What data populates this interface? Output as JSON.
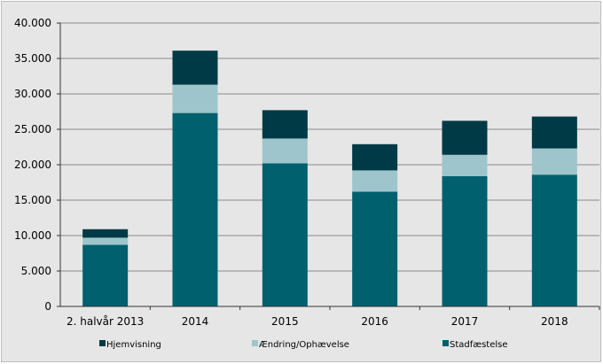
{
  "colors": {
    "background": "#e6e6e6",
    "gridline": "#8a8a8a",
    "stadfaestelse": "#00606e",
    "aendring": "#9ec5cc",
    "hjemvisning": "#003a46"
  },
  "chart_data": {
    "type": "bar",
    "stacked": true,
    "categories": [
      "2. halvår 2013",
      "2014",
      "2015",
      "2016",
      "2017",
      "2018"
    ],
    "series": [
      {
        "name": "Stadfæstelse",
        "values": [
          8700,
          27300,
          20200,
          16200,
          18400,
          18600
        ],
        "color": "#00606e"
      },
      {
        "name": "Ændring/Ophævelse",
        "values": [
          1000,
          4000,
          3500,
          3000,
          3000,
          3700
        ],
        "color": "#9ec5cc"
      },
      {
        "name": "Hjemvisning",
        "values": [
          1200,
          4800,
          4000,
          3700,
          4800,
          4500
        ],
        "color": "#003a46"
      }
    ],
    "ylim": [
      0,
      40000
    ],
    "yticks": [
      0,
      5000,
      10000,
      15000,
      20000,
      25000,
      30000,
      35000,
      40000
    ],
    "ytick_labels": [
      "0",
      "5.000",
      "10.000",
      "15.000",
      "20.000",
      "25.000",
      "30.000",
      "35.000",
      "40.000"
    ],
    "grid": true,
    "legend": {
      "placement": "bottom",
      "entries": [
        "Hjemvisning",
        "Ændring/Ophævelse",
        "Stadfæstelse"
      ]
    }
  }
}
